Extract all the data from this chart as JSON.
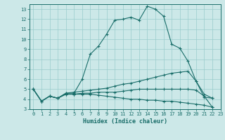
{
  "title": "",
  "xlabel": "Humidex (Indice chaleur)",
  "ylabel": "",
  "bg_color": "#cce8e8",
  "line_color": "#1a6e6a",
  "grid_color": "#99cccc",
  "xlim": [
    -0.5,
    23
  ],
  "ylim": [
    3,
    13.5
  ],
  "xticks": [
    0,
    1,
    2,
    3,
    4,
    5,
    6,
    7,
    8,
    9,
    10,
    11,
    12,
    13,
    14,
    15,
    16,
    17,
    18,
    19,
    20,
    21,
    22,
    23
  ],
  "yticks": [
    3,
    4,
    5,
    6,
    7,
    8,
    9,
    10,
    11,
    12,
    13
  ],
  "series": [
    {
      "x": [
        0,
        1,
        2,
        3,
        4,
        5,
        6,
        7,
        8,
        9,
        10,
        11,
        12,
        13,
        14,
        15,
        16,
        17,
        18,
        19,
        20,
        21,
        22
      ],
      "y": [
        5.0,
        3.8,
        4.3,
        4.1,
        4.6,
        4.6,
        6.0,
        8.5,
        9.3,
        10.5,
        11.9,
        12.0,
        12.2,
        11.9,
        13.3,
        13.0,
        12.3,
        9.5,
        9.1,
        7.8,
        5.8,
        4.2,
        4.1
      ]
    },
    {
      "x": [
        0,
        1,
        2,
        3,
        4,
        5,
        6,
        7,
        8,
        9,
        10,
        11,
        12,
        13,
        14,
        15,
        16,
        17,
        18,
        19,
        20,
        21,
        22
      ],
      "y": [
        5.0,
        3.8,
        4.3,
        4.1,
        4.6,
        4.7,
        4.8,
        4.9,
        5.0,
        5.1,
        5.3,
        5.5,
        5.6,
        5.8,
        6.0,
        6.2,
        6.4,
        6.6,
        6.7,
        6.8,
        5.8,
        4.5,
        4.1
      ]
    },
    {
      "x": [
        0,
        1,
        2,
        3,
        4,
        5,
        6,
        7,
        8,
        9,
        10,
        11,
        12,
        13,
        14,
        15,
        16,
        17,
        18,
        19,
        20,
        21,
        22
      ],
      "y": [
        5.0,
        3.8,
        4.3,
        4.1,
        4.5,
        4.5,
        4.6,
        4.6,
        4.7,
        4.7,
        4.7,
        4.8,
        4.9,
        5.0,
        5.0,
        5.0,
        5.0,
        5.0,
        5.0,
        5.0,
        4.9,
        4.3,
        3.2
      ]
    },
    {
      "x": [
        0,
        1,
        2,
        3,
        4,
        5,
        6,
        7,
        8,
        9,
        10,
        11,
        12,
        13,
        14,
        15,
        16,
        17,
        18,
        19,
        20,
        21,
        22
      ],
      "y": [
        5.0,
        3.8,
        4.3,
        4.1,
        4.5,
        4.5,
        4.5,
        4.5,
        4.4,
        4.3,
        4.2,
        4.1,
        4.0,
        4.0,
        3.9,
        3.9,
        3.8,
        3.8,
        3.7,
        3.6,
        3.5,
        3.4,
        3.2
      ]
    }
  ]
}
